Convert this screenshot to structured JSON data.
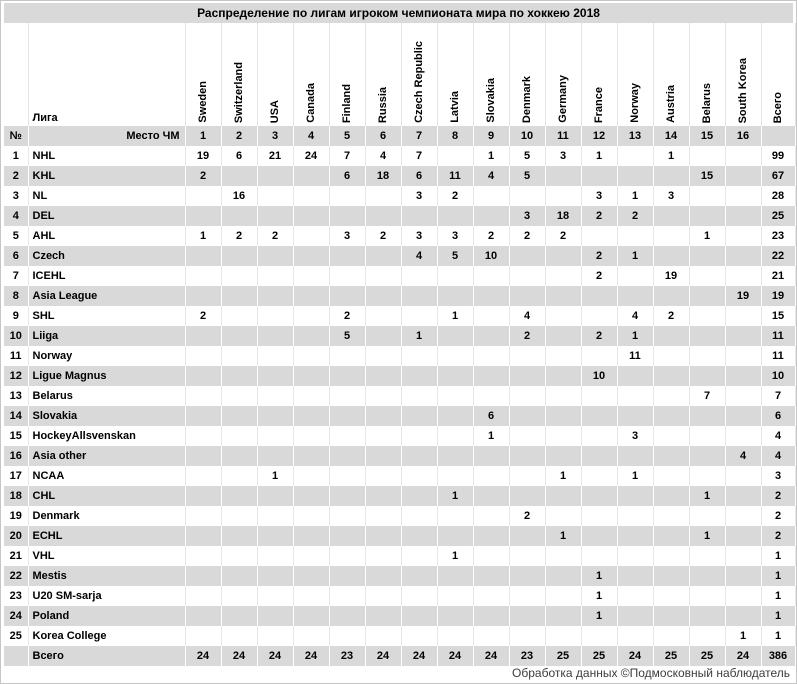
{
  "title": "Распределение по лигам игроком чемпионата мира по хоккею 2018",
  "footer": "Обработка данных ©Подмосковный наблюдатель",
  "colors": {
    "header_bg": "#d9d9d9",
    "row_alt_bg": "#d9d9d9",
    "row_bg": "#ffffff",
    "grid_on_gray": "#ffffff",
    "grid_on_white": "#e8e8e8",
    "text": "#000000"
  },
  "chart_data": {
    "type": "table",
    "title": "Распределение по лигам игроком чемпионата мира по хоккею 2018",
    "corner_label": "№",
    "league_header": "Лига",
    "place_row_label": "Место ЧМ",
    "total_col_label": "Всего",
    "total_row_label": "Всего",
    "countries": [
      "Sweden",
      "Switzerland",
      "USA",
      "Canada",
      "Finland",
      "Russia",
      "Czech Republic",
      "Latvia",
      "Slovakia",
      "Denmark",
      "Germany",
      "France",
      "Norway",
      "Austria",
      "Belarus",
      "South Korea"
    ],
    "places": [
      1,
      2,
      3,
      4,
      5,
      6,
      7,
      8,
      9,
      10,
      11,
      12,
      13,
      14,
      15,
      16
    ],
    "rows": [
      {
        "num": 1,
        "league": "NHL",
        "values": [
          19,
          6,
          21,
          24,
          7,
          4,
          7,
          null,
          1,
          5,
          3,
          1,
          null,
          1,
          null,
          null
        ],
        "total": 99
      },
      {
        "num": 2,
        "league": "KHL",
        "values": [
          2,
          null,
          null,
          null,
          6,
          18,
          6,
          11,
          4,
          5,
          null,
          null,
          null,
          null,
          15,
          null
        ],
        "total": 67
      },
      {
        "num": 3,
        "league": "NL",
        "values": [
          null,
          16,
          null,
          null,
          null,
          null,
          3,
          2,
          null,
          null,
          null,
          3,
          1,
          3,
          null,
          null
        ],
        "total": 28
      },
      {
        "num": 4,
        "league": "DEL",
        "values": [
          null,
          null,
          null,
          null,
          null,
          null,
          null,
          null,
          null,
          3,
          18,
          2,
          2,
          null,
          null,
          null
        ],
        "total": 25
      },
      {
        "num": 5,
        "league": "AHL",
        "values": [
          1,
          2,
          2,
          null,
          3,
          2,
          3,
          3,
          2,
          2,
          2,
          null,
          null,
          null,
          1,
          null
        ],
        "total": 23
      },
      {
        "num": 6,
        "league": "Czech",
        "values": [
          null,
          null,
          null,
          null,
          null,
          null,
          4,
          5,
          10,
          null,
          null,
          2,
          1,
          null,
          null,
          null
        ],
        "total": 22
      },
      {
        "num": 7,
        "league": "ICEHL",
        "values": [
          null,
          null,
          null,
          null,
          null,
          null,
          null,
          null,
          null,
          null,
          null,
          2,
          null,
          19,
          null,
          null
        ],
        "total": 21
      },
      {
        "num": 8,
        "league": "Asia League",
        "values": [
          null,
          null,
          null,
          null,
          null,
          null,
          null,
          null,
          null,
          null,
          null,
          null,
          null,
          null,
          null,
          19
        ],
        "total": 19
      },
      {
        "num": 9,
        "league": "SHL",
        "values": [
          2,
          null,
          null,
          null,
          2,
          null,
          null,
          1,
          null,
          4,
          null,
          null,
          4,
          2,
          null,
          null
        ],
        "total": 15
      },
      {
        "num": 10,
        "league": "Liiga",
        "values": [
          null,
          null,
          null,
          null,
          5,
          null,
          1,
          null,
          null,
          2,
          null,
          2,
          1,
          null,
          null,
          null
        ],
        "total": 11
      },
      {
        "num": 11,
        "league": "Norway",
        "values": [
          null,
          null,
          null,
          null,
          null,
          null,
          null,
          null,
          null,
          null,
          null,
          null,
          11,
          null,
          null,
          null
        ],
        "total": 11
      },
      {
        "num": 12,
        "league": "Ligue Magnus",
        "values": [
          null,
          null,
          null,
          null,
          null,
          null,
          null,
          null,
          null,
          null,
          null,
          10,
          null,
          null,
          null,
          null
        ],
        "total": 10
      },
      {
        "num": 13,
        "league": "Belarus",
        "values": [
          null,
          null,
          null,
          null,
          null,
          null,
          null,
          null,
          null,
          null,
          null,
          null,
          null,
          null,
          7,
          null
        ],
        "total": 7
      },
      {
        "num": 14,
        "league": "Slovakia",
        "values": [
          null,
          null,
          null,
          null,
          null,
          null,
          null,
          null,
          6,
          null,
          null,
          null,
          null,
          null,
          null,
          null
        ],
        "total": 6
      },
      {
        "num": 15,
        "league": "HockeyAllsvenskan",
        "values": [
          null,
          null,
          null,
          null,
          null,
          null,
          null,
          null,
          1,
          null,
          null,
          null,
          3,
          null,
          null,
          null
        ],
        "total": 4
      },
      {
        "num": 16,
        "league": "Asia other",
        "values": [
          null,
          null,
          null,
          null,
          null,
          null,
          null,
          null,
          null,
          null,
          null,
          null,
          null,
          null,
          null,
          4
        ],
        "total": 4
      },
      {
        "num": 17,
        "league": "NCAA",
        "values": [
          null,
          null,
          1,
          null,
          null,
          null,
          null,
          null,
          null,
          null,
          1,
          null,
          1,
          null,
          null,
          null
        ],
        "total": 3
      },
      {
        "num": 18,
        "league": "CHL",
        "values": [
          null,
          null,
          null,
          null,
          null,
          null,
          null,
          1,
          null,
          null,
          null,
          null,
          null,
          null,
          1,
          null
        ],
        "total": 2
      },
      {
        "num": 19,
        "league": "Denmark",
        "values": [
          null,
          null,
          null,
          null,
          null,
          null,
          null,
          null,
          null,
          2,
          null,
          null,
          null,
          null,
          null,
          null
        ],
        "total": 2
      },
      {
        "num": 20,
        "league": "ECHL",
        "values": [
          null,
          null,
          null,
          null,
          null,
          null,
          null,
          null,
          null,
          null,
          1,
          null,
          null,
          null,
          1,
          null
        ],
        "total": 2
      },
      {
        "num": 21,
        "league": "VHL",
        "values": [
          null,
          null,
          null,
          null,
          null,
          null,
          null,
          1,
          null,
          null,
          null,
          null,
          null,
          null,
          null,
          null
        ],
        "total": 1
      },
      {
        "num": 22,
        "league": "Mestis",
        "values": [
          null,
          null,
          null,
          null,
          null,
          null,
          null,
          null,
          null,
          null,
          null,
          1,
          null,
          null,
          null,
          null
        ],
        "total": 1
      },
      {
        "num": 23,
        "league": "U20 SM-sarja",
        "values": [
          null,
          null,
          null,
          null,
          null,
          null,
          null,
          null,
          null,
          null,
          null,
          1,
          null,
          null,
          null,
          null
        ],
        "total": 1
      },
      {
        "num": 24,
        "league": "Poland",
        "values": [
          null,
          null,
          null,
          null,
          null,
          null,
          null,
          null,
          null,
          null,
          null,
          1,
          null,
          null,
          null,
          null
        ],
        "total": 1
      },
      {
        "num": 25,
        "league": "Korea College",
        "values": [
          null,
          null,
          null,
          null,
          null,
          null,
          null,
          null,
          null,
          null,
          null,
          null,
          null,
          null,
          null,
          1
        ],
        "total": 1
      }
    ],
    "column_totals": [
      24,
      24,
      24,
      24,
      23,
      24,
      24,
      24,
      24,
      23,
      25,
      25,
      24,
      25,
      25,
      24
    ],
    "grand_total": 386
  }
}
